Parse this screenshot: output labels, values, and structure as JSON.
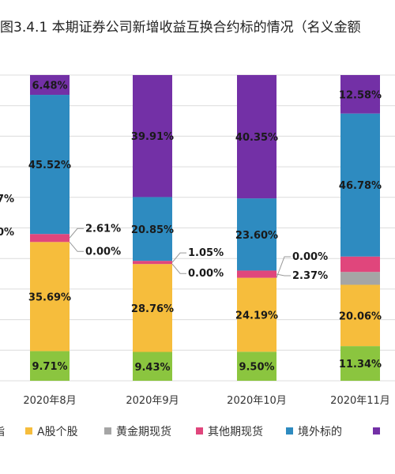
{
  "page_title": "图3.4.1 本期证券公司新增收益互换合约标的情况（名义金额",
  "colors": {
    "green": "#8BC53F",
    "yellow": "#F6BD3C",
    "gray": "#A5A5A5",
    "pink": "#E0467C",
    "blue": "#2E8BC0",
    "purple": "#7330A6"
  },
  "chart_data": {
    "type": "bar",
    "stacked": true,
    "categories": [
      "2020年8月",
      "2020年9月",
      "2020年10月",
      "2020年11月"
    ],
    "ylim": [
      0,
      100
    ],
    "grid": true,
    "legend_position": "bottom",
    "series": [
      {
        "name": "指",
        "color_key": "green",
        "values": [
          9.71,
          9.43,
          9.5,
          11.34
        ],
        "labels": [
          "9.71%",
          "9.43%",
          "9.50%",
          "11.34%"
        ]
      },
      {
        "name": "A股个股",
        "color_key": "yellow",
        "values": [
          35.69,
          28.76,
          24.19,
          20.06
        ],
        "labels": [
          "35.69%",
          "28.76%",
          "24.19%",
          "20.06%"
        ]
      },
      {
        "name": "黄金期现货",
        "color_key": "gray",
        "values": [
          0.0,
          0.0,
          0.0,
          4.2
        ],
        "labels": [
          "0.00%",
          "0.00%",
          "0.00%",
          ""
        ]
      },
      {
        "name": "其他期现货",
        "color_key": "pink",
        "values": [
          2.61,
          1.05,
          2.37,
          5.04
        ],
        "labels": [
          "2.61%",
          "1.05%",
          "2.37%",
          ""
        ]
      },
      {
        "name": "境外标的",
        "color_key": "blue",
        "values": [
          45.52,
          20.85,
          23.6,
          46.78
        ],
        "labels": [
          "45.52%",
          "20.85%",
          "23.60%",
          "46.78%"
        ]
      },
      {
        "name": "",
        "color_key": "purple",
        "values": [
          6.48,
          39.91,
          40.35,
          12.58
        ],
        "labels": [
          "6.48%",
          "39.91%",
          "40.35%",
          "12.58%"
        ]
      }
    ],
    "left_edge_labels": [
      "7%",
      "0%"
    ]
  }
}
